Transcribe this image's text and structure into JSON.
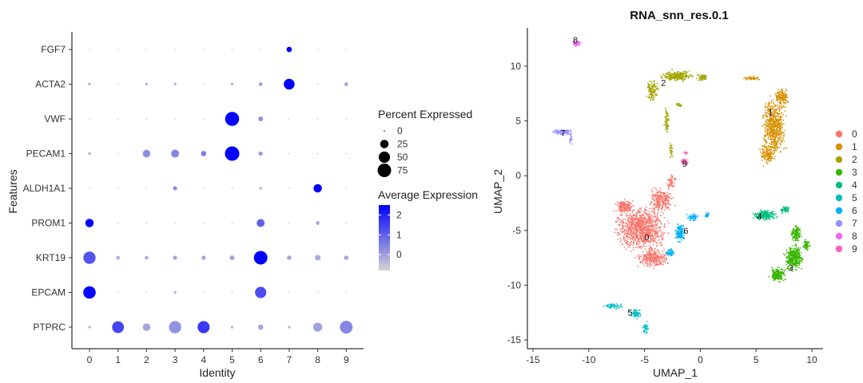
{
  "chart_data": [
    {
      "type": "scatter",
      "subtype": "dotplot",
      "xlabel": "Identity",
      "ylabel": "Features",
      "categories": [
        "0",
        "1",
        "2",
        "3",
        "4",
        "5",
        "6",
        "7",
        "8",
        "9"
      ],
      "features": [
        "FGF7",
        "ACTA2",
        "VWF",
        "PECAM1",
        "ALDH1A1",
        "PROM1",
        "KRT19",
        "EPCAM",
        "PTPRC"
      ],
      "size_legend": {
        "title": "Percent Expressed",
        "values": [
          0,
          25,
          50,
          75
        ]
      },
      "color_legend": {
        "title": "Average Expression",
        "ticks": [
          2,
          1,
          0
        ],
        "range": [
          -0.8,
          2.5
        ],
        "low_color": "#d3d3d3",
        "high_color": "#0000ff"
      },
      "dots": [
        {
          "feature": "FGF7",
          "identity": "0",
          "pct": 0,
          "avg": -0.4
        },
        {
          "feature": "FGF7",
          "identity": "1",
          "pct": 0,
          "avg": -0.4
        },
        {
          "feature": "FGF7",
          "identity": "2",
          "pct": 0,
          "avg": -0.4
        },
        {
          "feature": "FGF7",
          "identity": "3",
          "pct": 0,
          "avg": -0.4
        },
        {
          "feature": "FGF7",
          "identity": "4",
          "pct": 0,
          "avg": -0.4
        },
        {
          "feature": "FGF7",
          "identity": "5",
          "pct": 0,
          "avg": -0.4
        },
        {
          "feature": "FGF7",
          "identity": "6",
          "pct": 0,
          "avg": -0.4
        },
        {
          "feature": "FGF7",
          "identity": "7",
          "pct": 8,
          "avg": 2.5
        },
        {
          "feature": "FGF7",
          "identity": "8",
          "pct": 0,
          "avg": -0.4
        },
        {
          "feature": "FGF7",
          "identity": "9",
          "pct": 0,
          "avg": -0.4
        },
        {
          "feature": "ACTA2",
          "identity": "0",
          "pct": 1,
          "avg": -0.3
        },
        {
          "feature": "ACTA2",
          "identity": "1",
          "pct": 0,
          "avg": -0.4
        },
        {
          "feature": "ACTA2",
          "identity": "2",
          "pct": 1,
          "avg": -0.3
        },
        {
          "feature": "ACTA2",
          "identity": "3",
          "pct": 1,
          "avg": -0.3
        },
        {
          "feature": "ACTA2",
          "identity": "4",
          "pct": 0,
          "avg": -0.4
        },
        {
          "feature": "ACTA2",
          "identity": "5",
          "pct": 1,
          "avg": -0.3
        },
        {
          "feature": "ACTA2",
          "identity": "6",
          "pct": 3,
          "avg": 0.0
        },
        {
          "feature": "ACTA2",
          "identity": "7",
          "pct": 45,
          "avg": 2.5
        },
        {
          "feature": "ACTA2",
          "identity": "8",
          "pct": 0,
          "avg": -0.4
        },
        {
          "feature": "ACTA2",
          "identity": "9",
          "pct": 3,
          "avg": -0.1
        },
        {
          "feature": "VWF",
          "identity": "0",
          "pct": 0,
          "avg": -0.4
        },
        {
          "feature": "VWF",
          "identity": "1",
          "pct": 0,
          "avg": -0.4
        },
        {
          "feature": "VWF",
          "identity": "2",
          "pct": 0,
          "avg": -0.4
        },
        {
          "feature": "VWF",
          "identity": "3",
          "pct": 0,
          "avg": -0.4
        },
        {
          "feature": "VWF",
          "identity": "4",
          "pct": 0,
          "avg": -0.4
        },
        {
          "feature": "VWF",
          "identity": "5",
          "pct": 80,
          "avg": 2.5
        },
        {
          "feature": "VWF",
          "identity": "6",
          "pct": 6,
          "avg": 0.2
        },
        {
          "feature": "VWF",
          "identity": "7",
          "pct": 0,
          "avg": -0.4
        },
        {
          "feature": "VWF",
          "identity": "8",
          "pct": 0,
          "avg": -0.4
        },
        {
          "feature": "VWF",
          "identity": "9",
          "pct": 0,
          "avg": -0.4
        },
        {
          "feature": "PECAM1",
          "identity": "0",
          "pct": 1,
          "avg": -0.3
        },
        {
          "feature": "PECAM1",
          "identity": "1",
          "pct": 0,
          "avg": -0.4
        },
        {
          "feature": "PECAM1",
          "identity": "2",
          "pct": 20,
          "avg": 0.3
        },
        {
          "feature": "PECAM1",
          "identity": "3",
          "pct": 22,
          "avg": 0.4
        },
        {
          "feature": "PECAM1",
          "identity": "4",
          "pct": 8,
          "avg": 0.5
        },
        {
          "feature": "PECAM1",
          "identity": "5",
          "pct": 85,
          "avg": 2.5
        },
        {
          "feature": "PECAM1",
          "identity": "6",
          "pct": 4,
          "avg": 0.1
        },
        {
          "feature": "PECAM1",
          "identity": "7",
          "pct": 0,
          "avg": -0.4
        },
        {
          "feature": "PECAM1",
          "identity": "8",
          "pct": 0,
          "avg": -0.4
        },
        {
          "feature": "PECAM1",
          "identity": "9",
          "pct": 0,
          "avg": -0.4
        },
        {
          "feature": "ALDH1A1",
          "identity": "0",
          "pct": 0,
          "avg": -0.4
        },
        {
          "feature": "ALDH1A1",
          "identity": "1",
          "pct": 0,
          "avg": -0.4
        },
        {
          "feature": "ALDH1A1",
          "identity": "2",
          "pct": 0,
          "avg": -0.4
        },
        {
          "feature": "ALDH1A1",
          "identity": "3",
          "pct": 4,
          "avg": 0.3
        },
        {
          "feature": "ALDH1A1",
          "identity": "4",
          "pct": 0,
          "avg": -0.4
        },
        {
          "feature": "ALDH1A1",
          "identity": "5",
          "pct": 0,
          "avg": -0.4
        },
        {
          "feature": "ALDH1A1",
          "identity": "6",
          "pct": 1,
          "avg": -0.3
        },
        {
          "feature": "ALDH1A1",
          "identity": "7",
          "pct": 0,
          "avg": -0.4
        },
        {
          "feature": "ALDH1A1",
          "identity": "8",
          "pct": 25,
          "avg": 2.5
        },
        {
          "feature": "ALDH1A1",
          "identity": "9",
          "pct": 0,
          "avg": -0.4
        },
        {
          "feature": "PROM1",
          "identity": "0",
          "pct": 25,
          "avg": 2.5
        },
        {
          "feature": "PROM1",
          "identity": "1",
          "pct": 0,
          "avg": -0.4
        },
        {
          "feature": "PROM1",
          "identity": "2",
          "pct": 0,
          "avg": -0.4
        },
        {
          "feature": "PROM1",
          "identity": "3",
          "pct": 0,
          "avg": -0.4
        },
        {
          "feature": "PROM1",
          "identity": "4",
          "pct": 0,
          "avg": -0.4
        },
        {
          "feature": "PROM1",
          "identity": "5",
          "pct": 0,
          "avg": -0.4
        },
        {
          "feature": "PROM1",
          "identity": "6",
          "pct": 22,
          "avg": 1.0
        },
        {
          "feature": "PROM1",
          "identity": "7",
          "pct": 0,
          "avg": -0.4
        },
        {
          "feature": "PROM1",
          "identity": "8",
          "pct": 3,
          "avg": -0.1
        },
        {
          "feature": "PROM1",
          "identity": "9",
          "pct": 0,
          "avg": -0.4
        },
        {
          "feature": "KRT19",
          "identity": "0",
          "pct": 60,
          "avg": 1.2
        },
        {
          "feature": "KRT19",
          "identity": "1",
          "pct": 3,
          "avg": -0.2
        },
        {
          "feature": "KRT19",
          "identity": "2",
          "pct": 3,
          "avg": -0.2
        },
        {
          "feature": "KRT19",
          "identity": "3",
          "pct": 4,
          "avg": -0.1
        },
        {
          "feature": "KRT19",
          "identity": "4",
          "pct": 4,
          "avg": -0.1
        },
        {
          "feature": "KRT19",
          "identity": "5",
          "pct": 6,
          "avg": -0.1
        },
        {
          "feature": "KRT19",
          "identity": "6",
          "pct": 75,
          "avg": 2.5
        },
        {
          "feature": "KRT19",
          "identity": "7",
          "pct": 5,
          "avg": -0.1
        },
        {
          "feature": "KRT19",
          "identity": "8",
          "pct": 10,
          "avg": -0.2
        },
        {
          "feature": "KRT19",
          "identity": "9",
          "pct": 5,
          "avg": -0.1
        },
        {
          "feature": "EPCAM",
          "identity": "0",
          "pct": 62,
          "avg": 2.4
        },
        {
          "feature": "EPCAM",
          "identity": "1",
          "pct": 0,
          "avg": -0.4
        },
        {
          "feature": "EPCAM",
          "identity": "2",
          "pct": 0,
          "avg": -0.4
        },
        {
          "feature": "EPCAM",
          "identity": "3",
          "pct": 1,
          "avg": -0.3
        },
        {
          "feature": "EPCAM",
          "identity": "4",
          "pct": 0,
          "avg": -0.4
        },
        {
          "feature": "EPCAM",
          "identity": "5",
          "pct": 0,
          "avg": -0.4
        },
        {
          "feature": "EPCAM",
          "identity": "6",
          "pct": 50,
          "avg": 1.3
        },
        {
          "feature": "EPCAM",
          "identity": "7",
          "pct": 0,
          "avg": -0.4
        },
        {
          "feature": "EPCAM",
          "identity": "8",
          "pct": 0,
          "avg": -0.4
        },
        {
          "feature": "EPCAM",
          "identity": "9",
          "pct": 0,
          "avg": -0.4
        },
        {
          "feature": "PTPRC",
          "identity": "0",
          "pct": 1,
          "avg": -0.3
        },
        {
          "feature": "PTPRC",
          "identity": "1",
          "pct": 55,
          "avg": 1.4
        },
        {
          "feature": "PTPRC",
          "identity": "2",
          "pct": 20,
          "avg": -0.1
        },
        {
          "feature": "PTPRC",
          "identity": "3",
          "pct": 60,
          "avg": 0.2
        },
        {
          "feature": "PTPRC",
          "identity": "4",
          "pct": 58,
          "avg": 1.6
        },
        {
          "feature": "PTPRC",
          "identity": "5",
          "pct": 1,
          "avg": -0.3
        },
        {
          "feature": "PTPRC",
          "identity": "6",
          "pct": 8,
          "avg": -0.1
        },
        {
          "feature": "PTPRC",
          "identity": "7",
          "pct": 1,
          "avg": -0.3
        },
        {
          "feature": "PTPRC",
          "identity": "8",
          "pct": 30,
          "avg": 0.0
        },
        {
          "feature": "PTPRC",
          "identity": "9",
          "pct": 65,
          "avg": 0.4
        }
      ]
    },
    {
      "type": "scatter",
      "subtype": "umap",
      "title": "RNA_snn_res.0.1",
      "xlabel": "UMAP_1",
      "ylabel": "UMAP_2",
      "xticks": [
        -15,
        -10,
        -5,
        0,
        5,
        10
      ],
      "yticks": [
        10,
        5,
        0,
        -5,
        -10,
        -15
      ],
      "xlim": [
        -15.5,
        11
      ],
      "ylim": [
        -15.8,
        13.5
      ],
      "legend_position": "right",
      "clusters": [
        {
          "name": "0",
          "color": "#F8766D",
          "center": [
            -5.0,
            -5.4
          ],
          "label_at": [
            -4.8,
            -5.6
          ]
        },
        {
          "name": "1",
          "color": "#D89000",
          "center": [
            6.2,
            4.5
          ],
          "label_at": [
            6.3,
            5.8
          ]
        },
        {
          "name": "2",
          "color": "#A3A500",
          "center": [
            -2.5,
            8.5
          ],
          "label_at": [
            -3.3,
            8.5
          ]
        },
        {
          "name": "3",
          "color": "#39B600",
          "center": [
            8.0,
            -7.6
          ],
          "label_at": [
            8.1,
            -8.4
          ]
        },
        {
          "name": "4",
          "color": "#00BF7D",
          "center": [
            5.8,
            -3.7
          ],
          "label_at": [
            5.3,
            -3.7
          ]
        },
        {
          "name": "5",
          "color": "#00BFC4",
          "center": [
            -6.3,
            -12.6
          ],
          "label_at": [
            -6.3,
            -12.5
          ]
        },
        {
          "name": "6",
          "color": "#00B0F6",
          "center": [
            -1.5,
            -5.4
          ],
          "label_at": [
            -1.3,
            -5.0
          ]
        },
        {
          "name": "7",
          "color": "#9590FF",
          "center": [
            -12.5,
            4.0
          ],
          "label_at": [
            -12.3,
            3.9
          ]
        },
        {
          "name": "8",
          "color": "#E76BF3",
          "center": [
            -11.0,
            12.2
          ],
          "label_at": [
            -11.2,
            12.4
          ]
        },
        {
          "name": "9",
          "color": "#FF62BC",
          "center": [
            -1.3,
            1.1
          ],
          "label_at": [
            -1.4,
            1.1
          ]
        }
      ]
    }
  ]
}
